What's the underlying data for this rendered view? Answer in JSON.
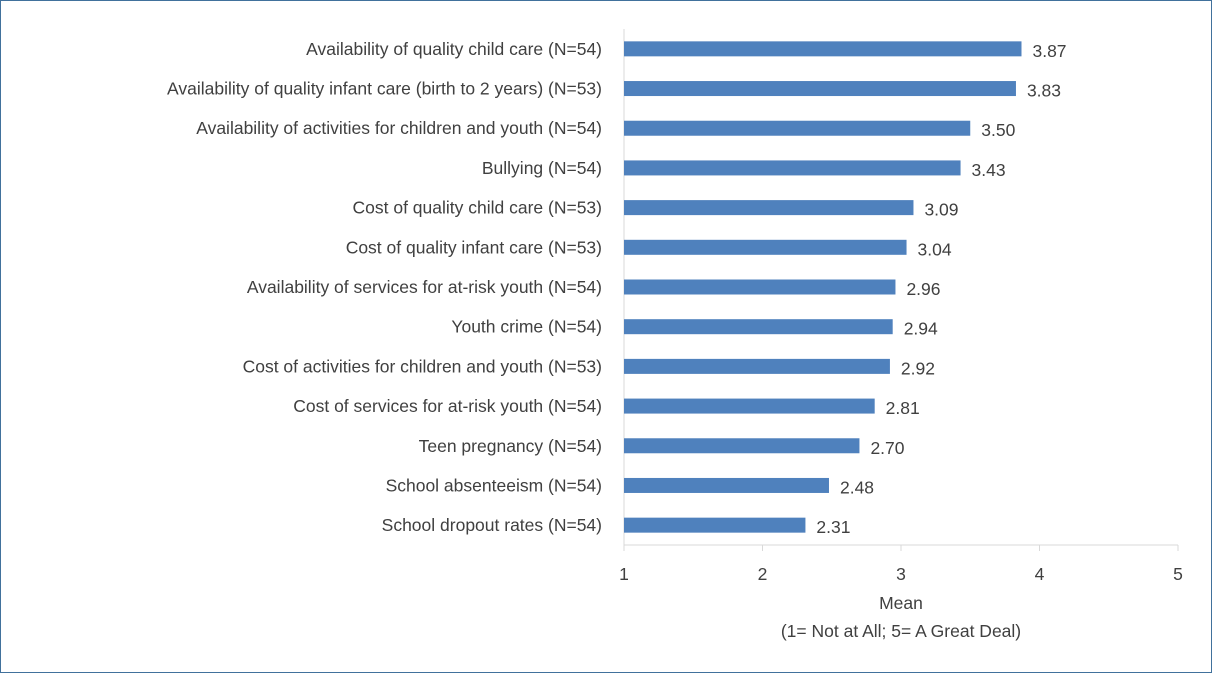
{
  "chart_data": {
    "type": "bar",
    "orientation": "horizontal",
    "categories": [
      "Availability of quality child care (N=54)",
      "Availability of quality infant care (birth to 2 years) (N=53)",
      "Availability of activities for children and youth (N=54)",
      "Bullying (N=54)",
      "Cost of quality child care (N=53)",
      "Cost of quality infant care (N=53)",
      "Availability of services for at-risk youth (N=54)",
      "Youth crime (N=54)",
      "Cost of activities for children and youth (N=53)",
      "Cost of services for at-risk youth (N=54)",
      "Teen pregnancy (N=54)",
      "School absenteeism (N=54)",
      "School dropout rates (N=54)"
    ],
    "values": [
      3.87,
      3.83,
      3.5,
      3.43,
      3.09,
      3.04,
      2.96,
      2.94,
      2.92,
      2.81,
      2.7,
      2.48,
      2.31
    ],
    "value_labels": [
      "3.87",
      "3.83",
      "3.50",
      "3.43",
      "3.09",
      "3.04",
      "2.96",
      "2.94",
      "2.92",
      "2.81",
      "2.70",
      "2.48",
      "2.31"
    ],
    "xlim": [
      1,
      5
    ],
    "x_ticks": [
      1,
      2,
      3,
      4,
      5
    ],
    "xlabel": "Mean",
    "xlabel_sub": "(1= Not at All; 5= A Great Deal)",
    "title": "",
    "grid": "vertical tick marks only",
    "legend": "none",
    "bar_color": "#4f81bd",
    "border_color": "#41719c",
    "axis_color": "#d9d9d9",
    "text_color": "#404040"
  }
}
